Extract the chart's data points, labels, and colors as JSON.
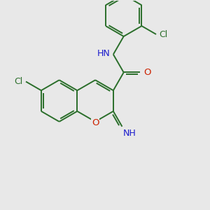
{
  "bg_color": "#e8e8e8",
  "bond_color": "#2a6e2a",
  "N_color": "#1a1acc",
  "O_color": "#cc2200",
  "Cl_color": "#2a6e2a",
  "H_color": "#5a8a8a",
  "figsize": [
    3.0,
    3.0
  ],
  "dpi": 100,
  "xlim": [
    0,
    10
  ],
  "ylim": [
    0,
    10
  ]
}
